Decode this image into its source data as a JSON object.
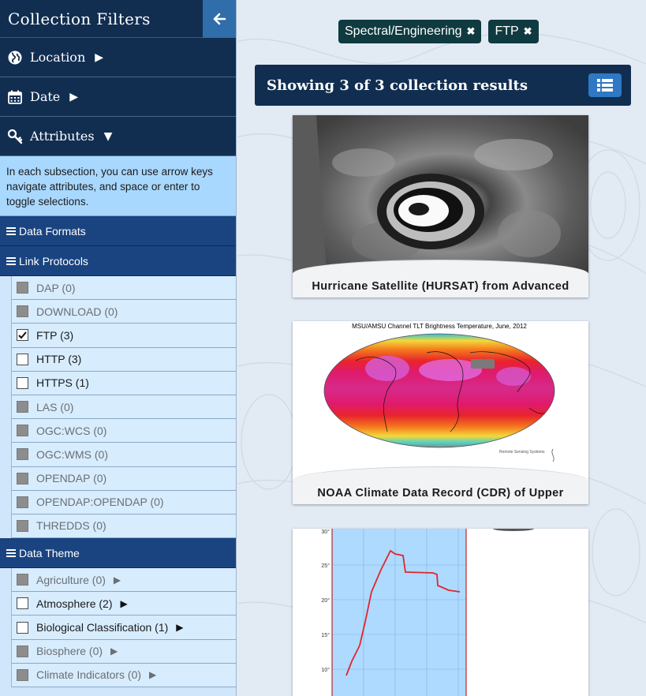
{
  "sidebar": {
    "title": "Collection Filters",
    "sections": [
      {
        "label": "Location",
        "arrow": "▶"
      },
      {
        "label": "Date",
        "arrow": "▶"
      },
      {
        "label": "Attributes",
        "arrow": "▼"
      }
    ],
    "help_text": "In each subsection, you can use arrow keys navigate attributes, and space or enter to toggle selections.",
    "groups": {
      "data_formats": "Data Formats",
      "link_protocols": "Link Protocols",
      "data_theme": "Data Theme"
    },
    "link_protocols": [
      {
        "label": "DAP (0)",
        "state": "disabled"
      },
      {
        "label": "DOWNLOAD (0)",
        "state": "disabled"
      },
      {
        "label": "FTP (3)",
        "state": "checked"
      },
      {
        "label": "HTTP (3)",
        "state": "enabled"
      },
      {
        "label": "HTTPS (1)",
        "state": "enabled"
      },
      {
        "label": "LAS (0)",
        "state": "disabled"
      },
      {
        "label": "OGC:WCS (0)",
        "state": "disabled"
      },
      {
        "label": "OGC:WMS (0)",
        "state": "disabled"
      },
      {
        "label": "OPENDAP (0)",
        "state": "disabled"
      },
      {
        "label": "OPENDAP:OPENDAP (0)",
        "state": "disabled"
      },
      {
        "label": "THREDDS (0)",
        "state": "disabled"
      }
    ],
    "data_theme": [
      {
        "label": "Agriculture (0)",
        "state": "disabled",
        "expand": "▶"
      },
      {
        "label": "Atmosphere (2)",
        "state": "enabled",
        "expand": "▶"
      },
      {
        "label": "Biological Classification (1)",
        "state": "enabled",
        "expand": "▶"
      },
      {
        "label": "Biosphere (0)",
        "state": "disabled",
        "expand": "▶"
      },
      {
        "label": "Climate Indicators (0)",
        "state": "disabled",
        "expand": "▶"
      }
    ]
  },
  "main": {
    "chips": [
      {
        "label": "Spectral/Engineering",
        "remove": "✖"
      },
      {
        "label": "FTP",
        "remove": "✖"
      }
    ],
    "results_title": "Showing 3 of 3 collection results",
    "cards": [
      {
        "caption": "Hurricane Satellite (HURSAT) from Advanced"
      },
      {
        "caption": "NOAA Climate Data Record (CDR) of Upper",
        "image_title": "MSU/AMSU Channel TLT Brightness Temperature, June, 2012",
        "image_credit": "Remote Sensing Systems"
      },
      {
        "caption": "",
        "axis_labels": [
          "30°",
          "25°",
          "20°",
          "15°",
          "10°"
        ]
      }
    ]
  },
  "colors": {
    "navy": "#112e51",
    "group_blue": "#1a4480",
    "help_bg": "#a9d8ff",
    "chip_bg": "#0f3a40",
    "accent": "#2f78c4"
  }
}
